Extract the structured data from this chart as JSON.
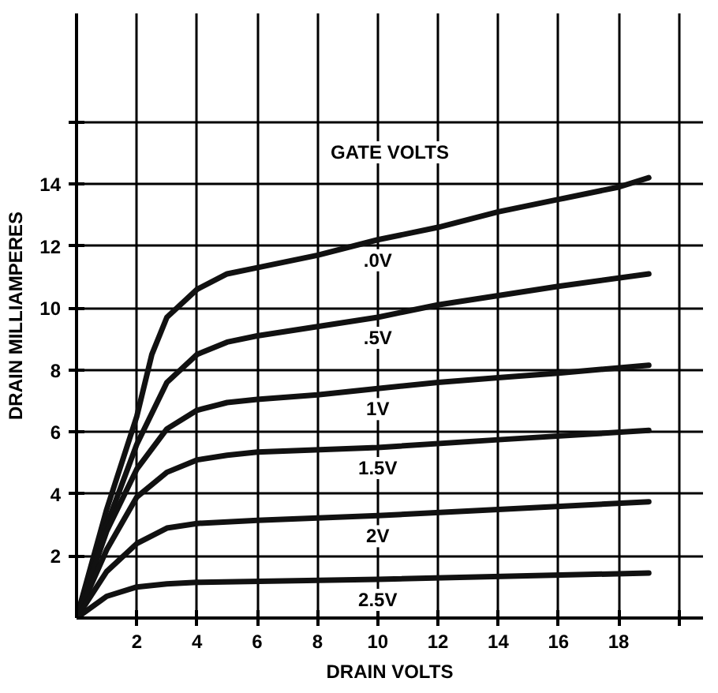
{
  "chart_data": {
    "type": "line",
    "xlabel": "DRAIN VOLTS",
    "ylabel": "DRAIN MILLIAMPERES",
    "annotations": [
      "GATE VOLTS"
    ],
    "xlim": [
      0,
      20.8
    ],
    "ylim": [
      0,
      19.5
    ],
    "xticks": [
      2,
      4,
      6,
      8,
      10,
      12,
      14,
      16,
      18,
      {
        "value": 20,
        "label": null
      }
    ],
    "yticks": [
      2,
      4,
      6,
      8,
      10,
      12,
      14,
      {
        "value": 16,
        "label": null
      }
    ],
    "grid": true,
    "marker": "none",
    "line_style": "solid",
    "series": [
      {
        "name": ".0V",
        "color": "#111111",
        "x": [
          0,
          1,
          2,
          2.5,
          3,
          4,
          5,
          6,
          8,
          10,
          12,
          14,
          16,
          18,
          19
        ],
        "values": [
          0,
          3.5,
          6.5,
          8.5,
          9.7,
          10.6,
          11.1,
          11.3,
          11.7,
          12.2,
          12.6,
          13.1,
          13.5,
          13.9,
          14.2
        ]
      },
      {
        "name": ".5V",
        "color": "#111111",
        "x": [
          0,
          1,
          2,
          3,
          4,
          5,
          6,
          8,
          10,
          12,
          14,
          16,
          19
        ],
        "values": [
          0,
          3,
          5.6,
          7.6,
          8.5,
          8.9,
          9.1,
          9.4,
          9.7,
          10.1,
          10.4,
          10.7,
          11.1
        ]
      },
      {
        "name": "1V",
        "color": "#111111",
        "x": [
          0,
          1,
          2,
          3,
          4,
          5,
          6,
          8,
          10,
          12,
          14,
          16,
          19
        ],
        "values": [
          0,
          2.8,
          4.8,
          6.1,
          6.7,
          6.95,
          7.05,
          7.2,
          7.4,
          7.6,
          7.75,
          7.9,
          8.15
        ]
      },
      {
        "name": "1.5V",
        "color": "#111111",
        "x": [
          0,
          1,
          2,
          3,
          4,
          5,
          6,
          10,
          14,
          19
        ],
        "values": [
          0,
          2.2,
          3.9,
          4.7,
          5.1,
          5.25,
          5.35,
          5.5,
          5.75,
          6.05
        ]
      },
      {
        "name": "2V",
        "color": "#111111",
        "x": [
          0,
          1,
          2,
          3,
          4,
          6,
          10,
          14,
          19
        ],
        "values": [
          0,
          1.5,
          2.4,
          2.9,
          3.05,
          3.15,
          3.3,
          3.5,
          3.75
        ]
      },
      {
        "name": "2.5V",
        "color": "#111111",
        "x": [
          0,
          1,
          2,
          3,
          4,
          10,
          19
        ],
        "values": [
          0,
          0.7,
          1.0,
          1.1,
          1.15,
          1.25,
          1.45
        ]
      }
    ]
  }
}
